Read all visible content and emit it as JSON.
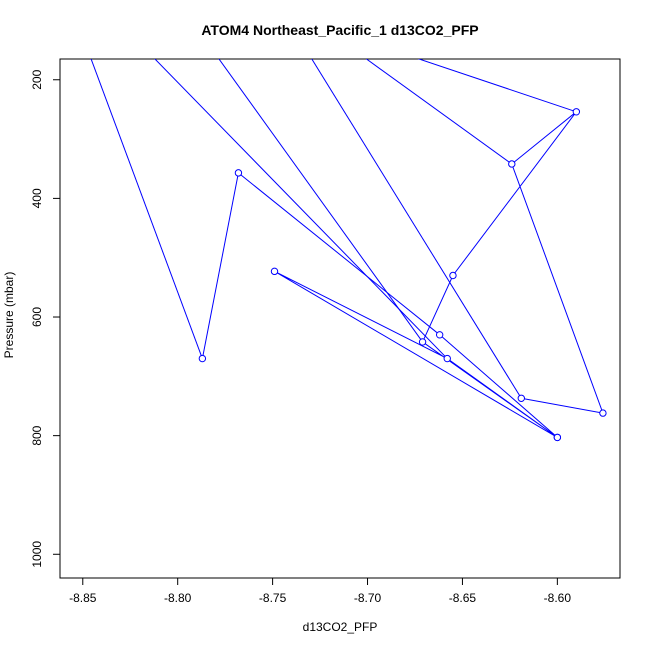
{
  "chart_data": {
    "type": "line",
    "title": "ATOM4 Northeast_Pacific_1 d13CO2_PFP",
    "xlabel": "d13CO2_PFP",
    "ylabel": "Pressure (mbar)",
    "xlim": [
      -8.862,
      -8.567
    ],
    "ylim": [
      1040,
      165
    ],
    "y_reversed": true,
    "x_ticks": [
      -8.85,
      -8.8,
      -8.75,
      -8.7,
      -8.65,
      -8.6
    ],
    "x_tick_labels": [
      "-8.85",
      "-8.80",
      "-8.75",
      "-8.70",
      "-8.65",
      "-8.60"
    ],
    "y_ticks": [
      200,
      400,
      600,
      800,
      1000
    ],
    "y_tick_labels": [
      "200",
      "400",
      "600",
      "800",
      "1000"
    ],
    "grid": false,
    "series": [
      {
        "color": "#0000ff",
        "marker": "open-circle",
        "points": [
          {
            "x": -8.787,
            "y": 670
          },
          {
            "x": -8.768,
            "y": 357
          },
          {
            "x": -8.662,
            "y": 630
          },
          {
            "x": -8.6,
            "y": 803
          },
          {
            "x": -8.658,
            "y": 670
          },
          {
            "x": -8.749,
            "y": 523
          },
          {
            "x": -8.6,
            "y": 803
          },
          {
            "x": -8.671,
            "y": 642
          },
          {
            "x": -8.655,
            "y": 530
          },
          {
            "x": -8.59,
            "y": 254
          },
          {
            "x": -8.624,
            "y": 342
          },
          {
            "x": -8.576,
            "y": 762
          },
          {
            "x": -8.619,
            "y": 737
          }
        ],
        "upper_entries": [
          {
            "x": -8.846,
            "to_index": 0
          },
          {
            "x": -8.813,
            "to_index": 4
          },
          {
            "x": -8.779,
            "to_index": 7
          },
          {
            "x": -8.73,
            "to_index": 12
          },
          {
            "x": -8.702,
            "to_index": 10
          },
          {
            "x": -8.676,
            "to_index": 9
          }
        ],
        "upper_exits": [
          {
            "from_index": 0
          },
          {
            "from_index": 4
          },
          {
            "from_index": 7
          },
          {
            "from_index": 12
          },
          {
            "from_index": 10
          },
          {
            "from_index": 9
          }
        ]
      }
    ]
  }
}
